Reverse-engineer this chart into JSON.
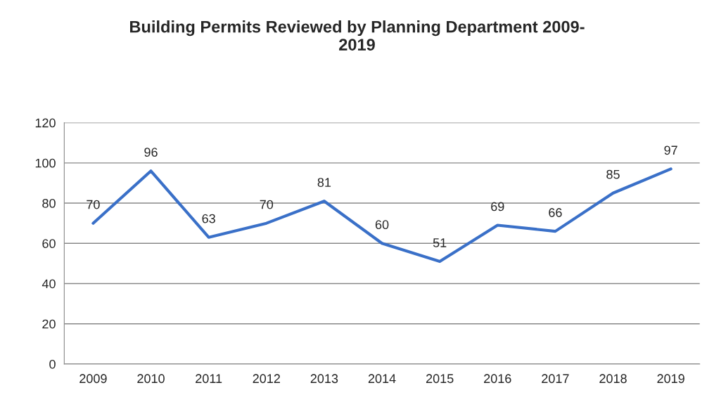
{
  "chart_data": {
    "type": "line",
    "title": "Building Permits Reviewed by Planning Department 2009-\n2019",
    "categories": [
      "2009",
      "2010",
      "2011",
      "2012",
      "2013",
      "2014",
      "2015",
      "2016",
      "2017",
      "2018",
      "2019"
    ],
    "series": [
      {
        "color": "#3a70c8",
        "values": [
          70,
          96,
          63,
          70,
          81,
          60,
          51,
          69,
          66,
          85,
          97
        ]
      }
    ],
    "ylim": [
      0,
      120
    ],
    "yticks": [
      0,
      20,
      40,
      60,
      80,
      100,
      120
    ],
    "grid": "y",
    "data_labels": true,
    "marker": "none",
    "line_style": "solid"
  }
}
